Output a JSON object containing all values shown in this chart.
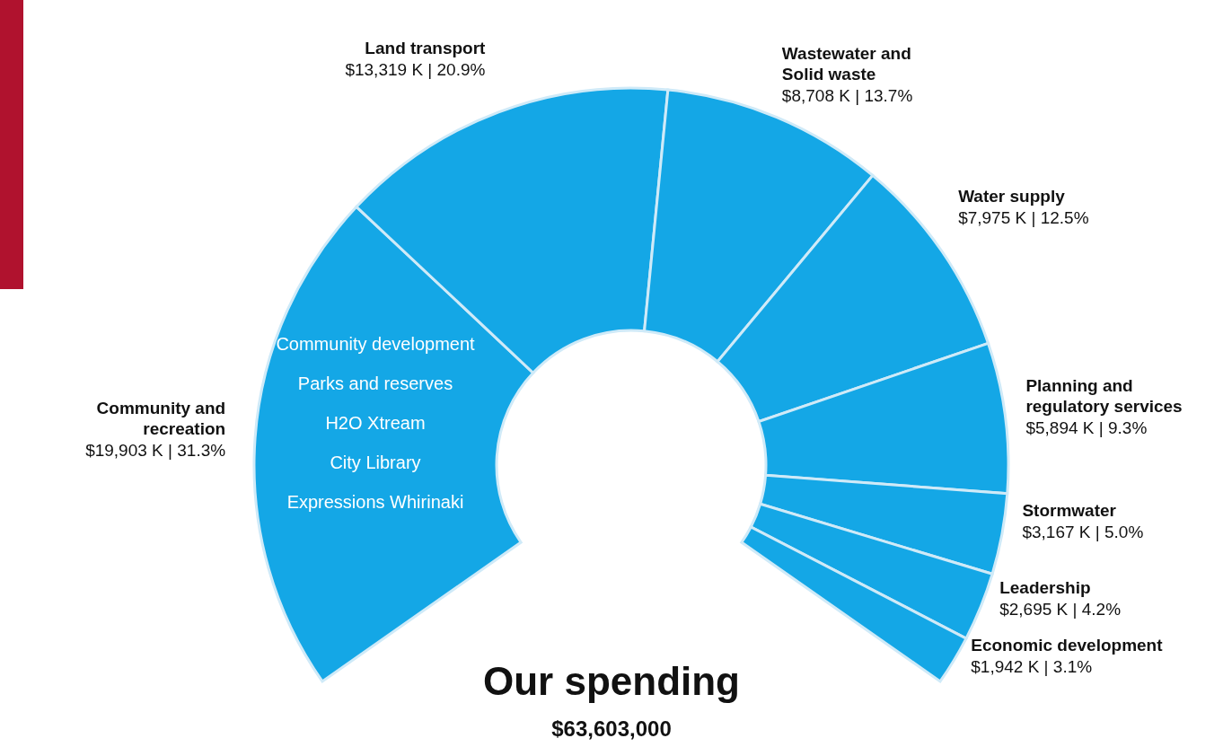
{
  "chart_data": {
    "type": "donut",
    "title": "Our spending",
    "subtitle": "$63,603,000",
    "categories": [
      "Community and recreation",
      "Land transport",
      "Wastewater and Solid waste",
      "Water supply",
      "Planning and regulatory services",
      "Stormwater",
      "Leadership",
      "Economic development"
    ],
    "values": [
      19903,
      13319,
      8708,
      7975,
      5894,
      3167,
      2695,
      1942
    ],
    "value_labels": [
      "$19,903 K | 31.3%",
      "$13,319 K | 20.9%",
      "$8,708 K | 13.7%",
      "$7,975 K | 12.5%",
      "$5,894 K | 9.3%",
      "$3,167 K | 5.0%",
      "$2,695 K | 4.2%",
      "$1,942 K | 3.1%"
    ],
    "colors": [
      "#14a7e6",
      "#14a7e6",
      "#14a7e6",
      "#14a7e6",
      "#14a7e6",
      "#14a7e6",
      "#14a7e6",
      "#14a7e6"
    ],
    "annotations": [
      "Community development",
      "Parks and reserves",
      "H2O Xtream",
      "City Library",
      "Expressions Whirinaki"
    ],
    "legend": false
  }
}
